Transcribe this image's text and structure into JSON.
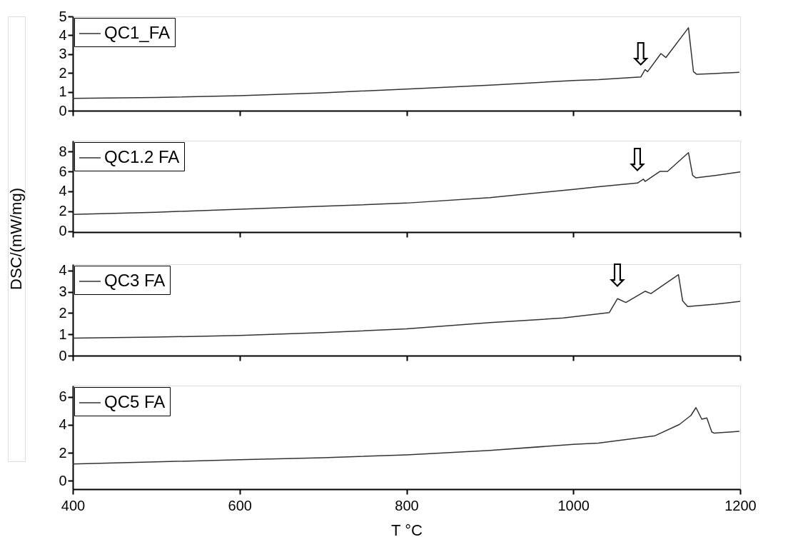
{
  "chart_data": [
    {
      "type": "line",
      "ylabel": "DSC/(mW/mg)",
      "xlim": [
        400,
        1200
      ],
      "xticks": [
        400,
        600,
        800,
        1000,
        1200
      ],
      "ylim": [
        0,
        5
      ],
      "yticks": [
        0,
        1,
        2,
        3,
        4,
        5
      ],
      "tick_labels": "y",
      "legend": "top left",
      "series": [
        {
          "name": "QC1_FA",
          "color": "#333333",
          "x": [
            400,
            500,
            600,
            700,
            800,
            900,
            1000,
            1030,
            1081,
            1086,
            1089,
            1105,
            1111,
            1138,
            1144,
            1148,
            1170,
            1199
          ],
          "values": [
            0.65,
            0.7,
            0.8,
            0.95,
            1.15,
            1.35,
            1.6,
            1.65,
            1.79,
            2.18,
            2.07,
            3.03,
            2.82,
            4.4,
            2.07,
            1.93,
            1.97,
            2.04
          ]
        }
      ],
      "annotations": [
        {
          "text": "⇩",
          "x": 1081,
          "y": 1.79
        }
      ]
    },
    {
      "type": "line",
      "xlim": [
        400,
        1200
      ],
      "xticks": [
        400,
        600,
        800,
        1000,
        1200
      ],
      "ylim": [
        -0.1,
        9.1
      ],
      "yticks": [
        0,
        2,
        4,
        6,
        8
      ],
      "tick_labels": "y",
      "legend": "top left",
      "series": [
        {
          "name": "QC1.2 FA",
          "color": "#333333",
          "x": [
            400,
            500,
            600,
            700,
            800,
            900,
            1000,
            1030,
            1077,
            1084,
            1086,
            1104,
            1113,
            1138,
            1143,
            1147,
            1170,
            1200
          ],
          "values": [
            1.67,
            1.9,
            2.2,
            2.5,
            2.82,
            3.37,
            4.2,
            4.46,
            4.84,
            5.23,
            5.0,
            6.01,
            6.01,
            7.9,
            5.6,
            5.36,
            5.6,
            5.95
          ]
        }
      ],
      "annotations": [
        {
          "text": "⇩",
          "x": 1077,
          "y": 4.84
        }
      ]
    },
    {
      "type": "line",
      "xlim": [
        400,
        1200
      ],
      "xticks": [
        400,
        600,
        800,
        1000,
        1200
      ],
      "ylim": [
        0,
        4.3
      ],
      "yticks": [
        0,
        1,
        2,
        3,
        4
      ],
      "tick_labels": "y",
      "legend": "top left",
      "series": [
        {
          "name": "QC3 FA",
          "color": "#333333",
          "x": [
            400,
            500,
            600,
            700,
            800,
            900,
            988,
            1043,
            1053,
            1063,
            1086,
            1093,
            1126,
            1131,
            1137,
            1170,
            1200
          ],
          "values": [
            0.82,
            0.87,
            0.95,
            1.08,
            1.26,
            1.55,
            1.77,
            2.02,
            2.68,
            2.5,
            3.03,
            2.92,
            3.81,
            2.58,
            2.31,
            2.42,
            2.55
          ]
        }
      ],
      "annotations": [
        {
          "text": "⇩",
          "x": 1053,
          "y": 2.68
        }
      ]
    },
    {
      "type": "line",
      "xlabel": "T °C",
      "xlim": [
        400,
        1200
      ],
      "xticks": [
        400,
        600,
        800,
        1000,
        1200
      ],
      "ylim": [
        -0.6,
        6.8
      ],
      "yticks": [
        0,
        2,
        4,
        6
      ],
      "legend": "top left",
      "series": [
        {
          "name": "QC5 FA",
          "color": "#333333",
          "x": [
            400,
            500,
            600,
            700,
            800,
            900,
            1000,
            1030,
            1098,
            1127,
            1141,
            1147,
            1154,
            1160,
            1166,
            1169,
            1199
          ],
          "values": [
            1.2,
            1.35,
            1.5,
            1.65,
            1.85,
            2.17,
            2.6,
            2.69,
            3.22,
            4.02,
            4.67,
            5.23,
            4.4,
            4.49,
            3.48,
            3.4,
            3.54
          ]
        }
      ]
    }
  ]
}
